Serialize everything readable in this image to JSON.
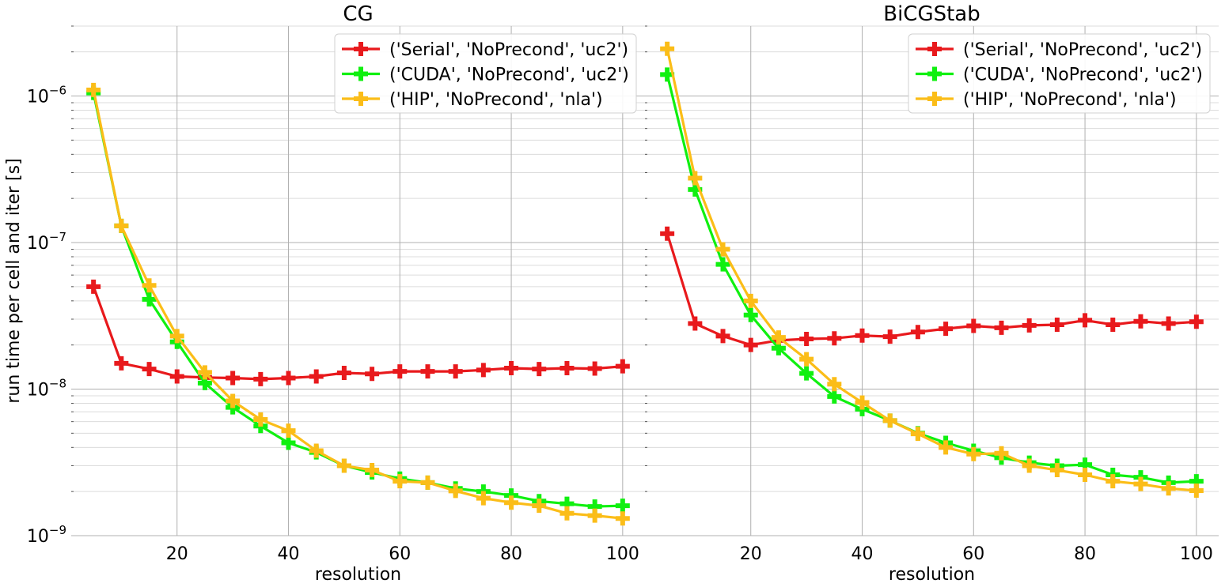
{
  "chart_data": [
    {
      "type": "line",
      "title": "CG",
      "xlabel": "resolution",
      "ylabel": "run time per cell and iter [s]",
      "yscale": "log",
      "ylim": [
        1e-09,
        3e-06
      ],
      "xlim": [
        1,
        104
      ],
      "xticks": [
        20,
        40,
        60,
        80,
        100
      ],
      "yticks": [
        {
          "value": 1e-09,
          "base": "10",
          "exp": "−9"
        },
        {
          "value": 1e-08,
          "base": "10",
          "exp": "−8"
        },
        {
          "value": 1e-07,
          "base": "10",
          "exp": "−7"
        },
        {
          "value": 1e-06,
          "base": "10",
          "exp": "−6"
        }
      ],
      "grid": true,
      "legend_position": "top-right",
      "x": [
        5,
        10,
        15,
        20,
        25,
        30,
        35,
        40,
        45,
        50,
        55,
        60,
        65,
        70,
        75,
        80,
        85,
        90,
        95,
        100
      ],
      "series": [
        {
          "name": "('Serial', 'NoPrecond', 'uc2')",
          "color": "#e8191c",
          "values": [
            5e-08,
            1.5e-08,
            1.37e-08,
            1.22e-08,
            1.2e-08,
            1.19e-08,
            1.17e-08,
            1.19e-08,
            1.22e-08,
            1.29e-08,
            1.27e-08,
            1.32e-08,
            1.32e-08,
            1.32e-08,
            1.35e-08,
            1.39e-08,
            1.37e-08,
            1.39e-08,
            1.38e-08,
            1.43e-08
          ]
        },
        {
          "name": "('CUDA', 'NoPrecond', 'uc2')",
          "color": "#10f010",
          "values": [
            1.05e-06,
            1.3e-07,
            4.1e-08,
            2.1e-08,
            1.1e-08,
            7.5e-09,
            5.6e-09,
            4.3e-09,
            3.7e-09,
            3e-09,
            2.7e-09,
            2.45e-09,
            2.3e-09,
            2.1e-09,
            2e-09,
            1.88e-09,
            1.72e-09,
            1.65e-09,
            1.58e-09,
            1.6e-09
          ]
        },
        {
          "name": "('HIP', 'NoPrecond', 'nla')",
          "color": "#fbbd18",
          "values": [
            1.1e-06,
            1.3e-07,
            5.1e-08,
            2.3e-08,
            1.3e-08,
            8.3e-09,
            6.2e-09,
            5.2e-09,
            3.8e-09,
            3e-09,
            2.8e-09,
            2.35e-09,
            2.3e-09,
            2.02e-09,
            1.8e-09,
            1.68e-09,
            1.6e-09,
            1.42e-09,
            1.37e-09,
            1.31e-09
          ]
        }
      ]
    },
    {
      "type": "line",
      "title": "BiCGStab",
      "xlabel": "resolution",
      "ylabel": "",
      "yscale": "log",
      "ylim": [
        1e-09,
        3e-06
      ],
      "xlim": [
        1,
        104
      ],
      "xticks": [
        20,
        40,
        60,
        80,
        100
      ],
      "yticks": [],
      "grid": true,
      "legend_position": "top-right",
      "x": [
        5,
        10,
        15,
        20,
        25,
        30,
        35,
        40,
        45,
        50,
        55,
        60,
        65,
        70,
        75,
        80,
        85,
        90,
        95,
        100
      ],
      "series": [
        {
          "name": "('Serial', 'NoPrecond', 'uc2')",
          "color": "#e8191c",
          "values": [
            1.15e-07,
            2.8e-08,
            2.3e-08,
            2e-08,
            2.15e-08,
            2.2e-08,
            2.22e-08,
            2.32e-08,
            2.28e-08,
            2.45e-08,
            2.58e-08,
            2.7e-08,
            2.62e-08,
            2.72e-08,
            2.75e-08,
            2.95e-08,
            2.75e-08,
            2.9e-08,
            2.8e-08,
            2.88e-08
          ]
        },
        {
          "name": "('CUDA', 'NoPrecond', 'uc2')",
          "color": "#10f010",
          "values": [
            1.4e-06,
            2.3e-07,
            7.1e-08,
            3.2e-08,
            1.9e-08,
            1.28e-08,
            8.9e-09,
            7.3e-09,
            6.1e-09,
            5e-09,
            4.3e-09,
            3.8e-09,
            3.4e-09,
            3.15e-09,
            3e-09,
            3.05e-09,
            2.6e-09,
            2.5e-09,
            2.3e-09,
            2.35e-09
          ]
        },
        {
          "name": "('HIP', 'NoPrecond', 'nla')",
          "color": "#fbbd18",
          "values": [
            2.1e-06,
            2.75e-07,
            9e-08,
            4e-08,
            2.25e-08,
            1.6e-08,
            1.08e-08,
            8.1e-09,
            6.1e-09,
            4.95e-09,
            4e-09,
            3.6e-09,
            3.65e-09,
            3e-09,
            2.8e-09,
            2.6e-09,
            2.35e-09,
            2.25e-09,
            2.1e-09,
            2.03e-09
          ]
        }
      ]
    }
  ]
}
